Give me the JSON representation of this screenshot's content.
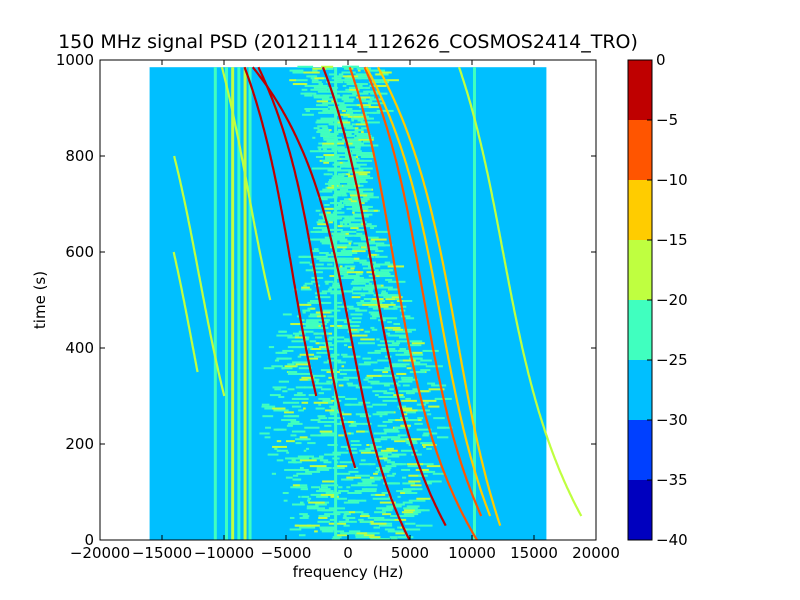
{
  "chart_data": [
    {
      "type": "heatmap",
      "title": "150 MHz signal PSD (20121114_112626_COSMOS2414_TRO)",
      "xlabel": "frequency (Hz)",
      "ylabel": "time (s)",
      "xlim": [
        -20000,
        20000
      ],
      "ylim": [
        0,
        1000
      ],
      "xticks": [
        -20000,
        -15000,
        -10000,
        -5000,
        0,
        5000,
        10000,
        15000,
        20000
      ],
      "xtick_labels": [
        "−20000",
        "−15000",
        "−10000",
        "−5000",
        "0",
        "5000",
        "10000",
        "15000",
        "20000"
      ],
      "yticks": [
        0,
        200,
        400,
        600,
        800,
        1000
      ],
      "ytick_labels": [
        "0",
        "200",
        "400",
        "600",
        "800",
        "1000"
      ],
      "data_extent": {
        "x": [
          -16000,
          16000
        ],
        "y": [
          0,
          985
        ]
      },
      "background_level": -27.5,
      "vertical_lines": [
        {
          "x": -10700,
          "level": -22
        },
        {
          "x": -9800,
          "level": -22
        },
        {
          "x": -9300,
          "level": -18
        },
        {
          "x": -8800,
          "level": -22
        },
        {
          "x": -8300,
          "level": -20
        },
        {
          "x": -7900,
          "level": -22
        },
        {
          "x": -1000,
          "level": -22
        },
        {
          "x": 10200,
          "level": -22
        }
      ],
      "doppler_tracks": [
        {
          "f_center": -4500,
          "t_center": 560,
          "slope": 30,
          "curvature": 2200,
          "t_range": [
            300,
            985
          ],
          "level": -2
        },
        {
          "f_center": -2300,
          "t_center": 500,
          "slope": 28,
          "curvature": 2000,
          "t_range": [
            150,
            985
          ],
          "level": -2
        },
        {
          "f_center": 200,
          "t_center": 430,
          "slope": 26,
          "curvature": 2100,
          "t_range": [
            0,
            985
          ],
          "level": -3
        },
        {
          "f_center": 2000,
          "t_center": 560,
          "slope": 30,
          "curvature": 2300,
          "t_range": [
            30,
            985
          ],
          "level": -5
        },
        {
          "f_center": 3700,
          "t_center": 580,
          "slope": 30,
          "curvature": 2200,
          "t_range": [
            0,
            985
          ],
          "level": -8
        },
        {
          "f_center": 6000,
          "t_center": 520,
          "slope": 30,
          "curvature": 2300,
          "t_range": [
            50,
            985
          ],
          "level": -8
        },
        {
          "f_center": 7500,
          "t_center": 460,
          "slope": 30,
          "curvature": 2400,
          "t_range": [
            50,
            985
          ],
          "level": -12
        },
        {
          "f_center": 8800,
          "t_center": 420,
          "slope": 32,
          "curvature": 2500,
          "t_range": [
            30,
            985
          ],
          "level": -15
        },
        {
          "f_center": 12500,
          "t_center": 600,
          "slope": 32,
          "curvature": 2600,
          "t_range": [
            50,
            985
          ],
          "level": -18
        },
        {
          "f_center": -12000,
          "t_center": 550,
          "slope": 32,
          "curvature": 2600,
          "t_range": [
            300,
            800
          ],
          "level": -18
        },
        {
          "f_center": -12500,
          "t_center": 400,
          "slope": 32,
          "curvature": 2600,
          "t_range": [
            350,
            600
          ],
          "level": -18
        },
        {
          "f_center": -8000,
          "t_center": 720,
          "slope": 30,
          "curvature": 2400,
          "t_range": [
            500,
            985
          ],
          "level": -18
        }
      ],
      "colorbar": {
        "levels": [
          -40,
          -35,
          -30,
          -25,
          -20,
          -15,
          -10,
          -5,
          0
        ],
        "tick_labels": [
          "−40",
          "−35",
          "−30",
          "−25",
          "−20",
          "−15",
          "−10",
          "−5",
          "0"
        ],
        "colors": [
          "#0000bf",
          "#0040ff",
          "#00bfff",
          "#40ffbf",
          "#bfff40",
          "#ffcc00",
          "#ff5500",
          "#bf0000"
        ]
      },
      "grid": false
    }
  ]
}
